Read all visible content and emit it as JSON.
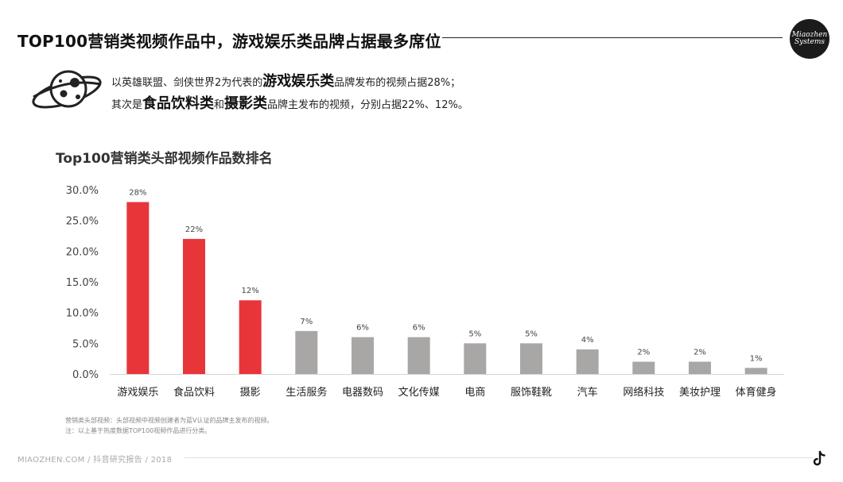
{
  "header": {
    "title": "TOP100营销类视频作品中，游戏娱乐类品牌占据最多席位",
    "logo_line1": "Miaozhen",
    "logo_line2": "Systems"
  },
  "summary": {
    "line1_pre": "以英雄联盟、剑侠世界2为代表的",
    "line1_em": "游戏娱乐类",
    "line1_post": "品牌发布的视频占据28%；",
    "line2_pre": "其次是",
    "line2_em1": "食品饮料类",
    "line2_mid": "和",
    "line2_em2": "摄影类",
    "line2_post": "品牌主发布的视频，分别占据22%、12%。"
  },
  "chart_data": {
    "type": "bar",
    "title": "Top100营销类头部视频作品数排名",
    "xlabel": "",
    "ylabel": "",
    "categories": [
      "游戏娱乐",
      "食品饮料",
      "摄影",
      "生活服务",
      "电器数码",
      "文化传媒",
      "电商",
      "服饰鞋靴",
      "汽车",
      "网络科技",
      "美妆护理",
      "体育健身"
    ],
    "values": [
      28,
      22,
      12,
      7,
      6,
      6,
      5,
      5,
      4,
      2,
      2,
      1
    ],
    "data_labels": [
      "28%",
      "22%",
      "12%",
      "7%",
      "6%",
      "6%",
      "5%",
      "5%",
      "4%",
      "2%",
      "2%",
      "1%"
    ],
    "highlight_count": 3,
    "ylim": [
      0,
      30
    ],
    "yticks": [
      "0.0%",
      "5.0%",
      "10.0%",
      "15.0%",
      "20.0%",
      "25.0%",
      "30.0%"
    ],
    "grid": false,
    "colors": {
      "highlight": "#e8353a",
      "normal": "#a9a6a6"
    }
  },
  "footnote": {
    "line1": "营销类头部视频：头部视频中视频创建者为蓝V认证的品牌主发布的视频。",
    "line2": "注：以上基于热度数据TOP100视频作品进行分类。"
  },
  "footer": {
    "left": "MIAOZHEN.COM / 抖音研究报告 / 2018"
  },
  "icons": {
    "planet": "planet-icon",
    "tiktok": "tiktok-icon"
  }
}
